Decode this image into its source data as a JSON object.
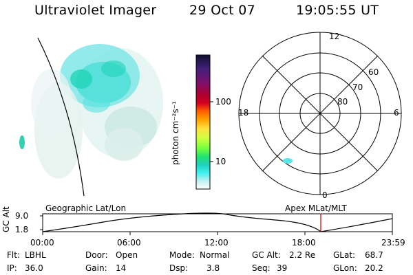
{
  "header": {
    "title": "Ultraviolet Imager",
    "date": "29 Oct 07",
    "time": "19:05:55 UT"
  },
  "colorbar": {
    "unit_label": "photon cm⁻²s⁻¹",
    "ticks": [
      "100",
      "10"
    ],
    "colors": [
      "#101030",
      "#40207a",
      "#7a1070",
      "#b00030",
      "#d40020",
      "#ff6000",
      "#ffa000",
      "#ffe040",
      "#d0ff40",
      "#70ff40",
      "#20e070",
      "#20d0c0",
      "#40f0f0",
      "#c0f0f0",
      "#ffffff"
    ]
  },
  "polar_plot": {
    "mlt_labels": {
      "top": "12",
      "right": "6",
      "bottom": "0",
      "left": "18"
    },
    "lat_labels": [
      "60",
      "70",
      "80"
    ]
  },
  "timeline": {
    "axis_label": "GC Alt",
    "y_ticks": [
      "9.0",
      "1.8"
    ],
    "left_title": "Geographic Lat/Lon",
    "right_title": "Apex MLat/MLT",
    "x_ticks": [
      "00:00",
      "06:00",
      "12:00",
      "18:00",
      "23:59"
    ],
    "marker_color": "#cc0000"
  },
  "info": {
    "flt_label": "Flt:",
    "flt_value": "LBHL",
    "ip_label": "IP:",
    "ip_value": "36.0",
    "door_label": "Door:",
    "door_value": "Open",
    "gain_label": "Gain:",
    "gain_value": "14",
    "mode_label": "Mode:",
    "mode_value": "Normal",
    "dsp_label": "Dsp:",
    "dsp_value": "3.8",
    "gcalt_label": "GC Alt:",
    "gcalt_value": "2.2 Re",
    "seq_label": "Seq:",
    "seq_value": "39",
    "glat_label": "GLat:",
    "glat_value": "68.7",
    "glon_label": "GLon:",
    "glon_value": "20.2"
  }
}
